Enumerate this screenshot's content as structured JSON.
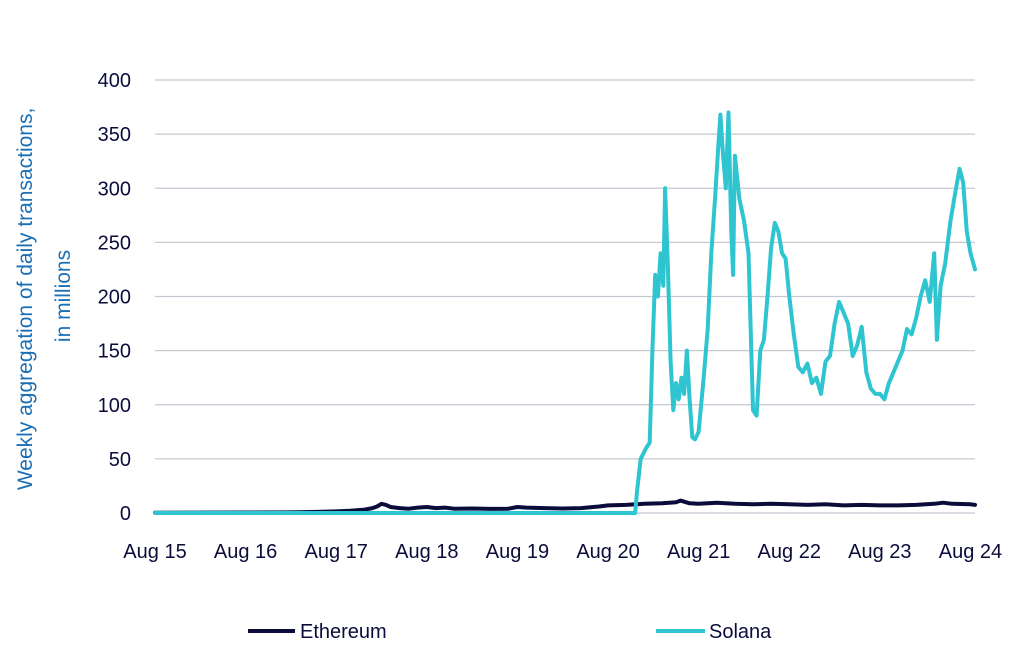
{
  "chart_data": {
    "type": "line",
    "title": "",
    "xlabel": "",
    "ylabel": "Weekly aggregation of daily transactions, in millions",
    "ylabel_lines": [
      "Weekly aggregation of daily transactions,",
      "in millions"
    ],
    "ylim": [
      0,
      400
    ],
    "yticks": [
      0,
      50,
      100,
      150,
      200,
      250,
      300,
      350,
      400
    ],
    "xlim": [
      2015.0,
      2024.05
    ],
    "xticks": [
      {
        "x": 2015,
        "label": "Aug 15"
      },
      {
        "x": 2016,
        "label": "Aug 16"
      },
      {
        "x": 2017,
        "label": "Aug 17"
      },
      {
        "x": 2018,
        "label": "Aug 18"
      },
      {
        "x": 2019,
        "label": "Aug 19"
      },
      {
        "x": 2020,
        "label": "Aug 20"
      },
      {
        "x": 2021,
        "label": "Aug 21"
      },
      {
        "x": 2022,
        "label": "Aug 22"
      },
      {
        "x": 2023,
        "label": "Aug 23"
      },
      {
        "x": 2024,
        "label": "Aug 24"
      }
    ],
    "grid": true,
    "legend_position": "bottom",
    "series": [
      {
        "name": "Ethereum",
        "color": "#0b0c3a",
        "points": [
          [
            2015.0,
            0.3
          ],
          [
            2015.5,
            0.4
          ],
          [
            2016.0,
            0.5
          ],
          [
            2016.5,
            0.6
          ],
          [
            2016.8,
            1.0
          ],
          [
            2017.0,
            1.5
          ],
          [
            2017.15,
            2.0
          ],
          [
            2017.3,
            3.0
          ],
          [
            2017.4,
            4.5
          ],
          [
            2017.45,
            6.0
          ],
          [
            2017.5,
            8.5
          ],
          [
            2017.55,
            7.5
          ],
          [
            2017.6,
            5.5
          ],
          [
            2017.7,
            4.5
          ],
          [
            2017.8,
            4.0
          ],
          [
            2017.9,
            5.0
          ],
          [
            2018.0,
            5.5
          ],
          [
            2018.1,
            4.5
          ],
          [
            2018.2,
            5.0
          ],
          [
            2018.3,
            4.0
          ],
          [
            2018.5,
            4.2
          ],
          [
            2018.7,
            3.8
          ],
          [
            2018.9,
            4.0
          ],
          [
            2019.0,
            5.5
          ],
          [
            2019.1,
            5.0
          ],
          [
            2019.3,
            4.5
          ],
          [
            2019.5,
            4.2
          ],
          [
            2019.7,
            4.5
          ],
          [
            2019.9,
            6.0
          ],
          [
            2020.0,
            7.0
          ],
          [
            2020.2,
            7.5
          ],
          [
            2020.4,
            8.5
          ],
          [
            2020.6,
            9.0
          ],
          [
            2020.75,
            10.0
          ],
          [
            2020.8,
            11.5
          ],
          [
            2020.9,
            9.0
          ],
          [
            2021.0,
            8.5
          ],
          [
            2021.2,
            9.5
          ],
          [
            2021.4,
            8.5
          ],
          [
            2021.6,
            8.0
          ],
          [
            2021.8,
            8.5
          ],
          [
            2022.0,
            8.0
          ],
          [
            2022.2,
            7.5
          ],
          [
            2022.4,
            8.0
          ],
          [
            2022.6,
            7.0
          ],
          [
            2022.8,
            7.5
          ],
          [
            2023.0,
            7.0
          ],
          [
            2023.2,
            7.0
          ],
          [
            2023.4,
            7.5
          ],
          [
            2023.6,
            8.5
          ],
          [
            2023.7,
            9.5
          ],
          [
            2023.8,
            8.5
          ],
          [
            2024.0,
            8.0
          ],
          [
            2024.05,
            7.5
          ]
        ]
      },
      {
        "name": "Solana",
        "color": "#2ec4d0",
        "points": [
          [
            2015.0,
            0.0
          ],
          [
            2020.3,
            0.0
          ],
          [
            2020.32,
            20
          ],
          [
            2020.36,
            50
          ],
          [
            2020.42,
            60
          ],
          [
            2020.46,
            65
          ],
          [
            2020.49,
            150
          ],
          [
            2020.52,
            220
          ],
          [
            2020.55,
            200
          ],
          [
            2020.58,
            240
          ],
          [
            2020.61,
            210
          ],
          [
            2020.63,
            300
          ],
          [
            2020.66,
            230
          ],
          [
            2020.69,
            140
          ],
          [
            2020.72,
            95
          ],
          [
            2020.75,
            120
          ],
          [
            2020.78,
            105
          ],
          [
            2020.81,
            125
          ],
          [
            2020.84,
            110
          ],
          [
            2020.87,
            150
          ],
          [
            2020.9,
            105
          ],
          [
            2020.93,
            70
          ],
          [
            2020.96,
            68
          ],
          [
            2021.0,
            75
          ],
          [
            2021.05,
            120
          ],
          [
            2021.1,
            170
          ],
          [
            2021.14,
            240
          ],
          [
            2021.18,
            290
          ],
          [
            2021.21,
            330
          ],
          [
            2021.24,
            368
          ],
          [
            2021.27,
            330
          ],
          [
            2021.3,
            300
          ],
          [
            2021.33,
            370
          ],
          [
            2021.36,
            260
          ],
          [
            2021.38,
            220
          ],
          [
            2021.4,
            330
          ],
          [
            2021.45,
            290
          ],
          [
            2021.5,
            270
          ],
          [
            2021.55,
            240
          ],
          [
            2021.6,
            95
          ],
          [
            2021.64,
            90
          ],
          [
            2021.68,
            150
          ],
          [
            2021.72,
            160
          ],
          [
            2021.76,
            200
          ],
          [
            2021.8,
            245
          ],
          [
            2021.84,
            268
          ],
          [
            2021.88,
            260
          ],
          [
            2021.92,
            240
          ],
          [
            2021.96,
            235
          ],
          [
            2022.0,
            200
          ],
          [
            2022.05,
            165
          ],
          [
            2022.1,
            135
          ],
          [
            2022.15,
            130
          ],
          [
            2022.2,
            138
          ],
          [
            2022.25,
            120
          ],
          [
            2022.3,
            125
          ],
          [
            2022.35,
            110
          ],
          [
            2022.4,
            140
          ],
          [
            2022.45,
            145
          ],
          [
            2022.5,
            175
          ],
          [
            2022.55,
            195
          ],
          [
            2022.6,
            185
          ],
          [
            2022.65,
            175
          ],
          [
            2022.7,
            145
          ],
          [
            2022.75,
            155
          ],
          [
            2022.8,
            172
          ],
          [
            2022.85,
            130
          ],
          [
            2022.9,
            115
          ],
          [
            2022.95,
            110
          ],
          [
            2023.0,
            110
          ],
          [
            2023.05,
            105
          ],
          [
            2023.1,
            120
          ],
          [
            2023.15,
            130
          ],
          [
            2023.2,
            140
          ],
          [
            2023.25,
            150
          ],
          [
            2023.3,
            170
          ],
          [
            2023.35,
            165
          ],
          [
            2023.4,
            180
          ],
          [
            2023.45,
            200
          ],
          [
            2023.5,
            215
          ],
          [
            2023.55,
            195
          ],
          [
            2023.6,
            240
          ],
          [
            2023.63,
            160
          ],
          [
            2023.67,
            210
          ],
          [
            2023.72,
            230
          ],
          [
            2023.78,
            270
          ],
          [
            2023.84,
            300
          ],
          [
            2023.88,
            318
          ],
          [
            2023.92,
            305
          ],
          [
            2023.96,
            260
          ],
          [
            2024.0,
            240
          ],
          [
            2024.05,
            225
          ]
        ]
      }
    ]
  }
}
